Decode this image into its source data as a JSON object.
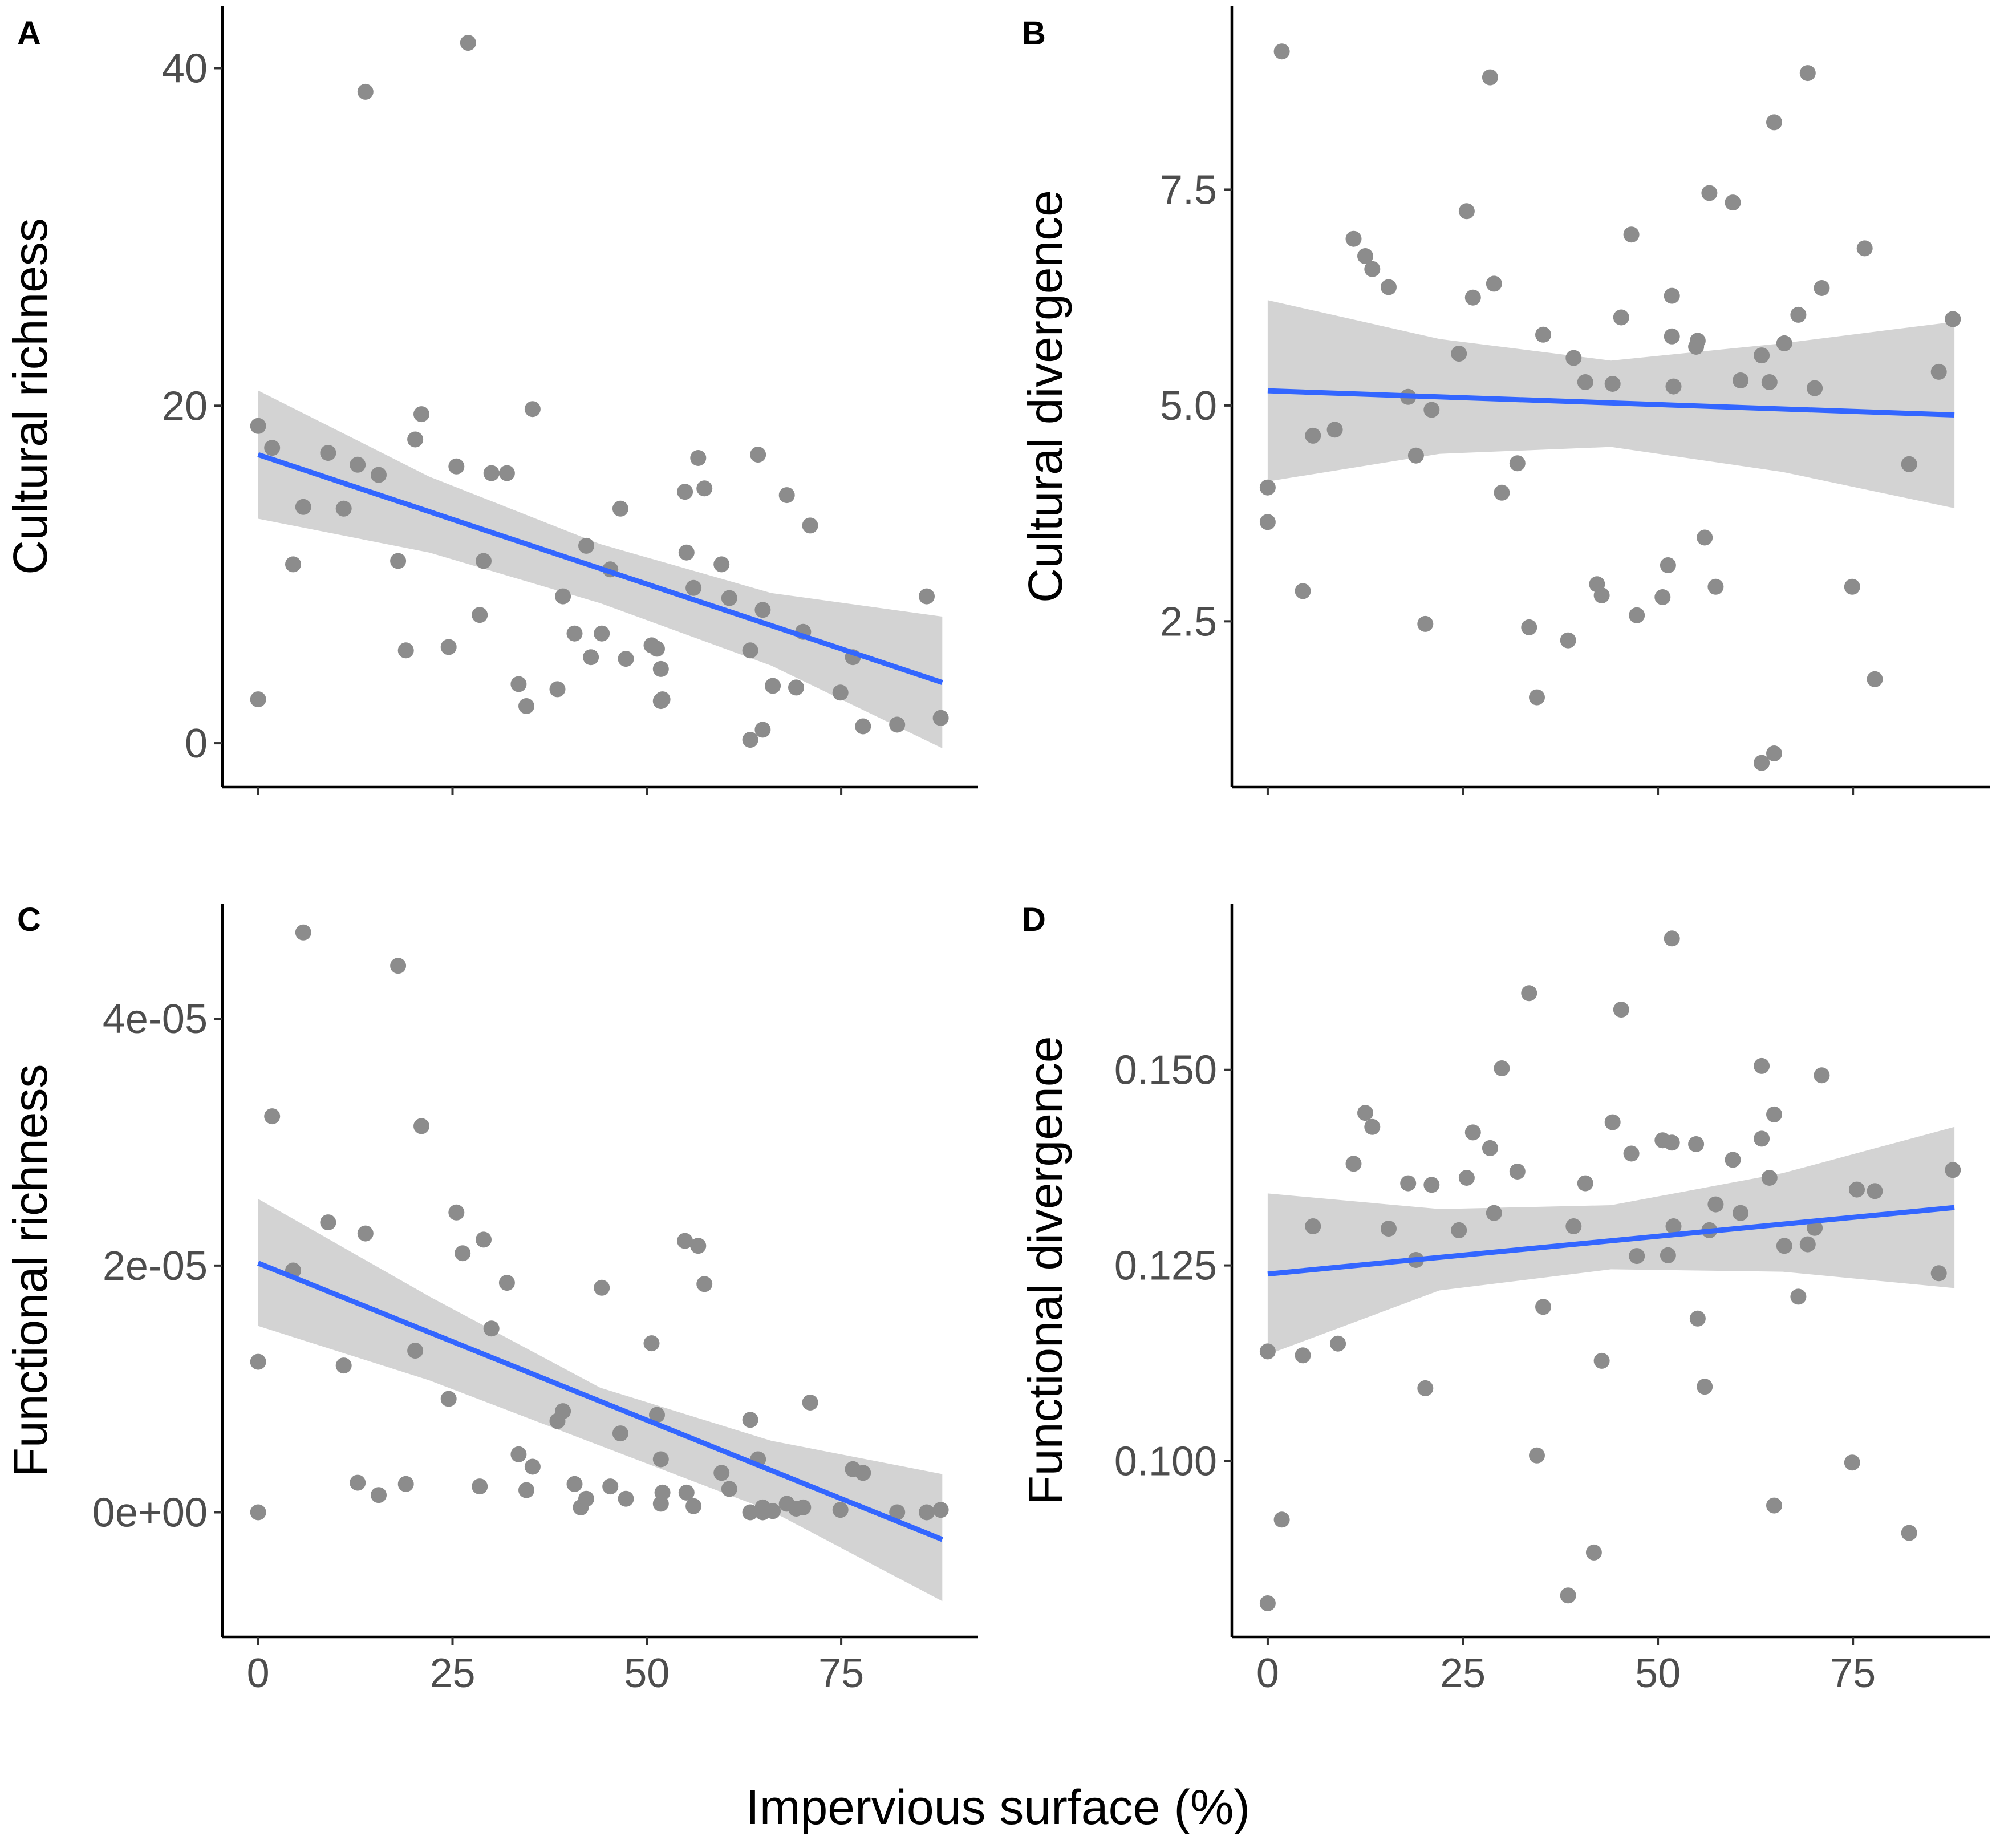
{
  "figure": {
    "shared_xlabel": "Impervious surface (%)"
  },
  "colors": {
    "points": "#8c8c8c",
    "ci_band": "#d3d3d3",
    "fit_line": "#3366ff",
    "axis": "#000000",
    "tick_text": "#4d4d4d"
  },
  "chart_data": [
    {
      "panel": "A",
      "type": "scatter",
      "ylabel": "Cultural richness",
      "xlim": [
        -4.6,
        92.6
      ],
      "ylim": [
        -2.6,
        43.7
      ],
      "xticks": [
        0,
        25,
        50,
        75
      ],
      "xtick_labels": [
        "0",
        "25",
        "50",
        "75"
      ],
      "show_xtick_labels": false,
      "yticks": [
        0,
        20,
        40
      ],
      "ytick_labels": [
        "0",
        "20",
        "40"
      ],
      "points": [
        [
          0,
          18.8
        ],
        [
          0,
          2.6
        ],
        [
          1.8,
          17.5
        ],
        [
          4.5,
          10.6
        ],
        [
          5.8,
          14
        ],
        [
          9,
          17.2
        ],
        [
          11,
          13.9
        ],
        [
          12.8,
          16.5
        ],
        [
          13.8,
          38.6
        ],
        [
          15.5,
          15.9
        ],
        [
          18,
          10.8
        ],
        [
          19,
          5.5
        ],
        [
          20.2,
          18
        ],
        [
          21,
          19.5
        ],
        [
          24.5,
          5.7
        ],
        [
          25.5,
          16.4
        ],
        [
          27,
          41.5
        ],
        [
          28.5,
          7.6
        ],
        [
          29,
          10.8
        ],
        [
          30,
          16
        ],
        [
          32,
          16
        ],
        [
          33.5,
          3.5
        ],
        [
          34.5,
          2.2
        ],
        [
          35.3,
          19.8
        ],
        [
          38.5,
          3.2
        ],
        [
          39.2,
          8.7
        ],
        [
          40.7,
          6.5
        ],
        [
          42.2,
          11.7
        ],
        [
          42.8,
          5.1
        ],
        [
          44.2,
          6.5
        ],
        [
          45.3,
          10.3
        ],
        [
          46.6,
          13.9
        ],
        [
          47.3,
          5
        ],
        [
          50.6,
          5.8
        ],
        [
          51.3,
          5.6
        ],
        [
          51.8,
          2.5
        ],
        [
          51.8,
          4.4
        ],
        [
          52,
          2.6
        ],
        [
          54.9,
          14.9
        ],
        [
          55.1,
          11.3
        ],
        [
          56,
          9.2
        ],
        [
          56.6,
          16.9
        ],
        [
          57.4,
          15.1
        ],
        [
          59.6,
          10.6
        ],
        [
          60.6,
          8.6
        ],
        [
          63.3,
          5.5
        ],
        [
          63.3,
          0.2
        ],
        [
          64.3,
          17.1
        ],
        [
          64.9,
          0.8
        ],
        [
          64.9,
          7.9
        ],
        [
          66.2,
          3.4
        ],
        [
          68,
          14.7
        ],
        [
          69.2,
          3.3
        ],
        [
          70.1,
          6.6
        ],
        [
          71,
          12.9
        ],
        [
          74.9,
          3
        ],
        [
          76.5,
          5.1
        ],
        [
          77.8,
          1
        ],
        [
          82.2,
          1.1
        ],
        [
          86,
          8.7
        ],
        [
          87.8,
          1.5
        ]
      ],
      "fit": {
        "x": [
          0,
          88
        ],
        "y": [
          17.1,
          3.6
        ]
      },
      "ci_band": {
        "x": [
          0,
          22,
          44,
          66,
          88
        ],
        "upper": [
          20.9,
          15.8,
          11.8,
          8.9,
          7.5
        ],
        "lower": [
          13.3,
          11.3,
          8.3,
          4.6,
          -0.3
        ]
      }
    },
    {
      "panel": "B",
      "type": "scatter",
      "ylabel": "Cultural divergence",
      "xlim": [
        -4.6,
        92.6
      ],
      "ylim": [
        0.58,
        9.63
      ],
      "xticks": [
        0,
        25,
        50,
        75
      ],
      "xtick_labels": [
        "0",
        "25",
        "50",
        "75"
      ],
      "show_xtick_labels": false,
      "yticks": [
        2.5,
        5.0,
        7.5
      ],
      "ytick_labels": [
        "2.5",
        "5.0",
        "7.5"
      ],
      "points": [
        [
          0,
          4.05
        ],
        [
          0,
          3.65
        ],
        [
          1.8,
          9.1
        ],
        [
          4.5,
          2.85
        ],
        [
          5.8,
          4.65
        ],
        [
          8.6,
          4.72
        ],
        [
          11,
          6.93
        ],
        [
          12.5,
          6.73
        ],
        [
          13.4,
          6.58
        ],
        [
          15.5,
          6.37
        ],
        [
          18,
          5.1
        ],
        [
          19,
          4.42
        ],
        [
          20.2,
          2.47
        ],
        [
          21,
          4.95
        ],
        [
          24.5,
          5.6
        ],
        [
          25.5,
          7.25
        ],
        [
          26.3,
          6.25
        ],
        [
          28.5,
          8.8
        ],
        [
          29,
          6.41
        ],
        [
          30,
          3.99
        ],
        [
          32,
          4.33
        ],
        [
          33.5,
          2.43
        ],
        [
          34.5,
          1.62
        ],
        [
          35.3,
          5.82
        ],
        [
          38.5,
          2.28
        ],
        [
          39.2,
          5.55
        ],
        [
          40.7,
          5.27
        ],
        [
          42.2,
          2.93
        ],
        [
          42.8,
          2.8
        ],
        [
          44.2,
          5.25
        ],
        [
          45.3,
          6.02
        ],
        [
          46.6,
          6.98
        ],
        [
          47.3,
          2.57
        ],
        [
          50.6,
          2.78
        ],
        [
          51.3,
          3.15
        ],
        [
          51.8,
          5.8
        ],
        [
          51.8,
          6.27
        ],
        [
          52,
          5.22
        ],
        [
          54.9,
          5.68
        ],
        [
          55.1,
          5.75
        ],
        [
          56,
          3.47
        ],
        [
          56.6,
          7.46
        ],
        [
          57.4,
          2.9
        ],
        [
          59.6,
          7.35
        ],
        [
          60.6,
          5.29
        ],
        [
          63.3,
          5.58
        ],
        [
          63.3,
          0.86
        ],
        [
          64.3,
          5.27
        ],
        [
          64.9,
          0.97
        ],
        [
          64.9,
          8.28
        ],
        [
          66.2,
          5.72
        ],
        [
          68,
          6.05
        ],
        [
          69.2,
          8.85
        ],
        [
          70.1,
          5.2
        ],
        [
          71,
          6.36
        ],
        [
          74.9,
          2.9
        ],
        [
          76.5,
          6.82
        ],
        [
          77.8,
          1.83
        ],
        [
          82.2,
          4.32
        ],
        [
          86,
          5.39
        ],
        [
          87.8,
          6
        ],
        [
          87.8,
          6
        ]
      ],
      "fit": {
        "x": [
          0,
          88
        ],
        "y": [
          5.17,
          4.89
        ]
      },
      "ci_band": {
        "x": [
          0,
          22,
          44,
          66,
          88
        ],
        "upper": [
          6.22,
          5.77,
          5.52,
          5.72,
          5.97
        ],
        "lower": [
          4.12,
          4.44,
          4.52,
          4.23,
          3.81
        ]
      }
    },
    {
      "panel": "C",
      "type": "scatter",
      "ylabel": "Functional richness",
      "xlim": [
        -4.6,
        92.6
      ],
      "ylim": [
        -1.01e-05,
        4.93e-05
      ],
      "xticks": [
        0,
        25,
        50,
        75
      ],
      "xtick_labels": [
        "0",
        "25",
        "50",
        "75"
      ],
      "show_xtick_labels": true,
      "yticks": [
        0,
        2e-05,
        4e-05
      ],
      "ytick_labels": [
        "0e+00",
        "2e-05",
        "4e-05"
      ],
      "points": [
        [
          0,
          1.22e-05
        ],
        [
          0,
          0
        ],
        [
          1.8,
          3.21e-05
        ],
        [
          4.5,
          1.96e-05
        ],
        [
          5.8,
          4.7e-05
        ],
        [
          9,
          2.35e-05
        ],
        [
          11,
          1.19e-05
        ],
        [
          12.8,
          2.4e-06
        ],
        [
          13.8,
          2.26e-05
        ],
        [
          15.5,
          1.4e-06
        ],
        [
          18,
          4.43e-05
        ],
        [
          19,
          2.3e-06
        ],
        [
          20.2,
          1.31e-05
        ],
        [
          21,
          3.13e-05
        ],
        [
          24.5,
          9.2e-06
        ],
        [
          25.5,
          2.43e-05
        ],
        [
          26.3,
          2.1e-05
        ],
        [
          28.5,
          2.1e-06
        ],
        [
          29,
          2.21e-05
        ],
        [
          30,
          1.49e-05
        ],
        [
          32,
          1.86e-05
        ],
        [
          33.5,
          4.7e-06
        ],
        [
          34.5,
          1.8e-06
        ],
        [
          35.3,
          3.7e-06
        ],
        [
          38.5,
          7.4e-06
        ],
        [
          39.2,
          8.2e-06
        ],
        [
          40.7,
          2.3e-06
        ],
        [
          41.5,
          4e-07
        ],
        [
          42.2,
          1.1e-06
        ],
        [
          44.2,
          1.82e-05
        ],
        [
          45.3,
          2.1e-06
        ],
        [
          46.6,
          6.4e-06
        ],
        [
          47.3,
          1.1e-06
        ],
        [
          50.6,
          1.37e-05
        ],
        [
          51.3,
          7.9e-06
        ],
        [
          51.8,
          4.3e-06
        ],
        [
          51.8,
          7e-07
        ],
        [
          52,
          1.6e-06
        ],
        [
          54.9,
          2.2e-05
        ],
        [
          55.1,
          1.6e-06
        ],
        [
          56,
          5e-07
        ],
        [
          56.6,
          2.16e-05
        ],
        [
          57.4,
          1.85e-05
        ],
        [
          59.6,
          3.2e-06
        ],
        [
          60.6,
          1.9e-06
        ],
        [
          63.3,
          7.5e-06
        ],
        [
          63.3,
          0
        ],
        [
          64.3,
          4.3e-06
        ],
        [
          64.9,
          4e-07
        ],
        [
          64.9,
          0
        ],
        [
          66.2,
          1e-07
        ],
        [
          68,
          7e-07
        ],
        [
          69.2,
          3e-07
        ],
        [
          70.1,
          4e-07
        ],
        [
          71,
          8.9e-06
        ],
        [
          74.9,
          2e-07
        ],
        [
          76.5,
          3.5e-06
        ],
        [
          77.8,
          3.2e-06
        ],
        [
          82.2,
          0
        ],
        [
          86,
          0
        ],
        [
          87.8,
          2e-07
        ]
      ],
      "fit": {
        "x": [
          0,
          88
        ],
        "y": [
          2.02e-05,
          -2.2e-06
        ]
      },
      "ci_band": {
        "x": [
          0,
          22,
          44,
          66,
          88
        ],
        "upper": [
          2.54e-05,
          1.75e-05,
          1.01e-05,
          5.8e-06,
          3.1e-06
        ],
        "lower": [
          1.51e-05,
          1.07e-05,
          5.4e-06,
          1e-07,
          -7.2e-06
        ]
      }
    },
    {
      "panel": "D",
      "type": "scatter",
      "ylabel": "Functional divergence",
      "xlim": [
        -4.6,
        92.6
      ],
      "ylim": [
        0.0775,
        0.1712
      ],
      "xticks": [
        0,
        25,
        50,
        75
      ],
      "xtick_labels": [
        "0",
        "25",
        "50",
        "75"
      ],
      "show_xtick_labels": true,
      "yticks": [
        0.1,
        0.125,
        0.15
      ],
      "ytick_labels": [
        "0.100",
        "0.125",
        "0.150"
      ],
      "points": [
        [
          0,
          0.114
        ],
        [
          0,
          0.0818
        ],
        [
          1.8,
          0.0925
        ],
        [
          4.5,
          0.1135
        ],
        [
          5.8,
          0.13
        ],
        [
          9,
          0.115
        ],
        [
          11,
          0.138
        ],
        [
          12.5,
          0.1445
        ],
        [
          13.4,
          0.1427
        ],
        [
          15.5,
          0.1297
        ],
        [
          18,
          0.1355
        ],
        [
          19,
          0.1257
        ],
        [
          20.2,
          0.1093
        ],
        [
          21,
          0.1353
        ],
        [
          24.5,
          0.1295
        ],
        [
          25.5,
          0.1362
        ],
        [
          26.3,
          0.142
        ],
        [
          28.5,
          0.14
        ],
        [
          29,
          0.1317
        ],
        [
          30,
          0.1502
        ],
        [
          32,
          0.137
        ],
        [
          33.5,
          0.1598
        ],
        [
          34.5,
          0.1007
        ],
        [
          35.3,
          0.1197
        ],
        [
          38.5,
          0.0828
        ],
        [
          39.2,
          0.13
        ],
        [
          40.7,
          0.1355
        ],
        [
          41.8,
          0.0883
        ],
        [
          42.8,
          0.1128
        ],
        [
          44.2,
          0.1433
        ],
        [
          45.3,
          0.1577
        ],
        [
          46.6,
          0.1393
        ],
        [
          47.3,
          0.1262
        ],
        [
          50.6,
          0.141
        ],
        [
          51.3,
          0.1263
        ],
        [
          51.8,
          0.1407
        ],
        [
          51.8,
          0.1668
        ],
        [
          52,
          0.13
        ],
        [
          54.9,
          0.1405
        ],
        [
          55.1,
          0.1182
        ],
        [
          56,
          0.1095
        ],
        [
          56.6,
          0.1295
        ],
        [
          57.4,
          0.1328
        ],
        [
          59.6,
          0.1385
        ],
        [
          60.6,
          0.1317
        ],
        [
          63.3,
          0.1505
        ],
        [
          63.3,
          0.1412
        ],
        [
          64.3,
          0.1362
        ],
        [
          64.9,
          0.0943
        ],
        [
          64.9,
          0.1443
        ],
        [
          66.2,
          0.1275
        ],
        [
          68,
          0.121
        ],
        [
          69.2,
          0.1277
        ],
        [
          70.1,
          0.1298
        ],
        [
          71,
          0.1493
        ],
        [
          74.9,
          0.0998
        ],
        [
          75.5,
          0.1347
        ],
        [
          77.8,
          0.1345
        ],
        [
          82.2,
          0.0908
        ],
        [
          86,
          0.124
        ],
        [
          87.8,
          0.1372
        ]
      ],
      "fit": {
        "x": [
          0,
          88
        ],
        "y": [
          0.1239,
          0.1324
        ]
      },
      "ci_band": {
        "x": [
          0,
          22,
          44,
          66,
          88
        ],
        "upper": [
          0.1342,
          0.1322,
          0.1327,
          0.1368,
          0.1427
        ],
        "lower": [
          0.1136,
          0.1218,
          0.1245,
          0.1242,
          0.1221
        ]
      }
    }
  ]
}
